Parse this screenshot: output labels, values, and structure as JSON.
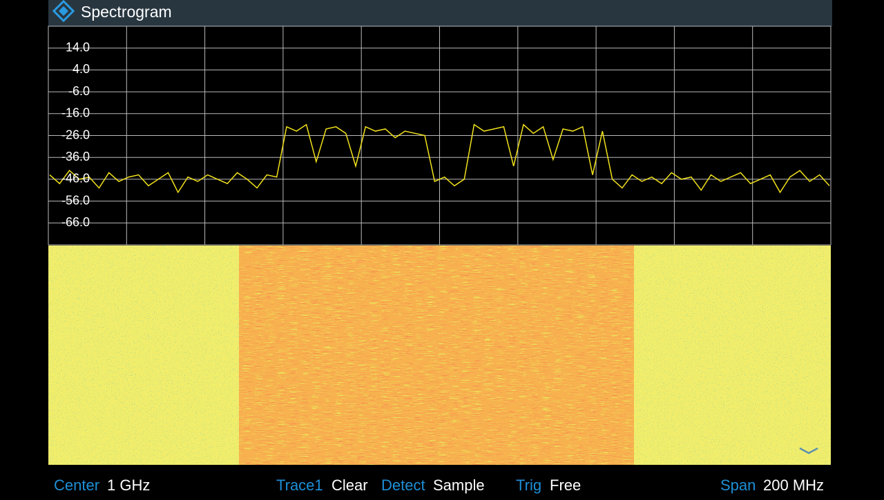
{
  "header": {
    "title": "Spectrogram"
  },
  "chart_data": {
    "type": "line",
    "ylim": [
      -76,
      24
    ],
    "yticks": [
      {
        "value": 14,
        "label": "14.0"
      },
      {
        "value": 4,
        "label": "4.0"
      },
      {
        "value": -6,
        "label": "-6.0"
      },
      {
        "value": -16,
        "label": "-16.0"
      },
      {
        "value": -26,
        "label": "-26.0"
      },
      {
        "value": -36,
        "label": "-36.0"
      },
      {
        "value": -46,
        "label": "-46.0"
      },
      {
        "value": -56,
        "label": "-56.0"
      },
      {
        "value": -66,
        "label": "-66.0"
      }
    ],
    "grid": true,
    "series": [
      {
        "color": "#f2e21c",
        "values": [
          -44,
          -48,
          -42,
          -46,
          -45,
          -50,
          -43,
          -47,
          -45,
          -44,
          -49,
          -46,
          -43,
          -52,
          -45,
          -47,
          -44,
          -46,
          -48,
          -43,
          -46,
          -50,
          -44,
          -45,
          -22,
          -24,
          -21,
          -38,
          -23,
          -22,
          -25,
          -40,
          -22,
          -24,
          -23,
          -27,
          -24,
          -25,
          -26,
          -47,
          -45,
          -49,
          -46,
          -21,
          -24,
          -23,
          -22,
          -40,
          -21,
          -25,
          -22,
          -37,
          -23,
          -24,
          -22,
          -44,
          -24,
          -46,
          -50,
          -44,
          -47,
          -45,
          -48,
          -43,
          -46,
          -45,
          -51,
          -44,
          -47,
          -45,
          -43,
          -48,
          -46,
          -44,
          -52,
          -45,
          -42,
          -47,
          -44,
          -49
        ]
      }
    ]
  },
  "footer": {
    "items": [
      {
        "label": "Center",
        "value": "1 GHz"
      },
      {
        "label": "Trace1",
        "value": "Clear"
      },
      {
        "label": "Detect",
        "value": "Sample"
      },
      {
        "label": "Trig",
        "value": "Free"
      },
      {
        "label": "Span",
        "value": "200 MHz"
      }
    ]
  }
}
